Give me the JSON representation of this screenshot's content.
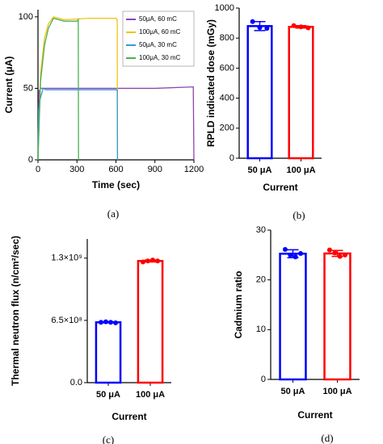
{
  "chart_data": [
    {
      "type": "line",
      "caption": "(a)",
      "xlabel": "Time (sec)",
      "ylabel": "Current (μA)",
      "xlim": [
        0,
        1200
      ],
      "xticks": [
        0,
        300,
        600,
        900,
        1200
      ],
      "ylim": [
        0,
        105
      ],
      "yticks": [
        0,
        50,
        100
      ],
      "legend": "upper right",
      "series": [
        {
          "name": "50μA, 60 mC",
          "color": "#8e44ad",
          "x": [
            0,
            8,
            20,
            100,
            300,
            600,
            900,
            1195,
            1200
          ],
          "values": [
            0,
            48,
            50,
            50,
            50,
            50,
            50,
            51,
            0
          ]
        },
        {
          "name": "100μA, 60 mC",
          "color": "#f1c40f",
          "x": [
            0,
            20,
            50,
            80,
            120,
            200,
            400,
            600,
            610,
            612
          ],
          "values": [
            0,
            60,
            85,
            95,
            100,
            98,
            99,
            99,
            98,
            0
          ]
        },
        {
          "name": "50μA, 30 mC",
          "color": "#3498db",
          "x": [
            0,
            5,
            15,
            40,
            60,
            300,
            600,
            610,
            612
          ],
          "values": [
            0,
            35,
            42,
            50,
            49,
            49,
            49,
            49,
            0
          ]
        },
        {
          "name": "100μA, 30 mC",
          "color": "#4caf50",
          "x": [
            0,
            20,
            50,
            80,
            120,
            200,
            300,
            310,
            312
          ],
          "values": [
            0,
            55,
            80,
            92,
            99,
            97,
            97,
            98,
            0
          ]
        }
      ]
    },
    {
      "type": "bar",
      "caption": "(b)",
      "xlabel": "Current",
      "ylabel": "RPLD indicated dose (mGy)",
      "categories": [
        "50 μA",
        "100 μA"
      ],
      "values": [
        880,
        875
      ],
      "errors": [
        30,
        8
      ],
      "points": [
        [
          910,
          870,
          865
        ],
        [
          883,
          875,
          868
        ]
      ],
      "colors": [
        "#0000ff",
        "#ff0000"
      ],
      "ylim": [
        0,
        1000
      ],
      "yticks": [
        0,
        200,
        400,
        600,
        800,
        1000
      ]
    },
    {
      "type": "bar",
      "caption": "(c)",
      "xlabel": "Current",
      "ylabel": "Thermal neutron flux (n/cm²/sec)",
      "categories": [
        "50 μA",
        "100 μA"
      ],
      "values": [
        630000000,
        1270000000
      ],
      "errors": [
        5000000,
        10000000
      ],
      "points": [
        [
          630000000,
          635000000,
          630000000,
          625000000
        ],
        [
          1260000000,
          1270000000,
          1280000000,
          1270000000
        ]
      ],
      "colors": [
        "#0000ff",
        "#ff0000"
      ],
      "ylim": [
        0,
        1500000000
      ],
      "yticks": [
        {
          "value": 0,
          "label": "0.0"
        },
        {
          "value": 650000000,
          "label": "6.5×10⁸"
        },
        {
          "value": 1300000000,
          "label": "1.3×10⁹"
        }
      ]
    },
    {
      "type": "bar",
      "caption": "(d)",
      "xlabel": "Current",
      "ylabel": "Cadmium ratio",
      "categories": [
        "50 μA",
        "100 μA"
      ],
      "values": [
        25.25,
        25.3
      ],
      "errors": [
        0.8,
        0.6
      ],
      "points": [
        [
          26.1,
          25.0,
          24.6,
          25.3
        ],
        [
          26.0,
          25.4,
          24.7,
          25.0
        ]
      ],
      "colors": [
        "#0000ff",
        "#ff0000"
      ],
      "ylim": [
        0,
        30
      ],
      "yticks": [
        0,
        10,
        20,
        30
      ]
    }
  ]
}
